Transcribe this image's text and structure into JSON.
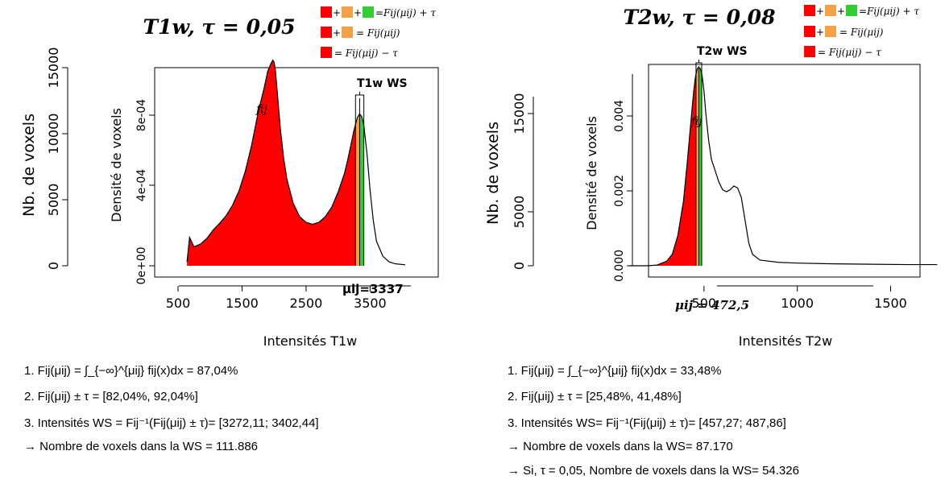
{
  "colors": {
    "red": "#ff0000",
    "orange": "#f4a044",
    "green": "#32cd32",
    "line": "#000000"
  },
  "legend": {
    "row1": "=Fij(μij) + τ",
    "row2": "= Fij(μij)",
    "row3": "= Fij(μij) −  τ"
  },
  "chart_data": [
    {
      "type": "area",
      "title": "T1w, τ = 0,05",
      "xlabel": "Intensités T1w",
      "ylabel_left": "Nb. de voxels",
      "ylabel_right": "Densité de voxels",
      "xticks": [
        "500",
        "1500",
        "2500",
        "3500"
      ],
      "yticks_count": [
        "0",
        "5000",
        "10000",
        "15000"
      ],
      "yticks_density": [
        "0e+00",
        "4e-04",
        "8e-04"
      ],
      "xlim": [
        500,
        4200
      ],
      "ylim_density": [
        0,
        0.00105
      ],
      "curve_label": "fij",
      "ws_label": "T1w WS",
      "mu_label": "μij=3337",
      "mu": 3337,
      "ws_interval": [
        3272.11,
        3402.44
      ],
      "x": [
        640,
        680,
        750,
        850,
        950,
        1050,
        1150,
        1250,
        1350,
        1450,
        1550,
        1650,
        1750,
        1850,
        1900,
        1950,
        1980,
        2000,
        2020,
        2050,
        2100,
        2150,
        2200,
        2300,
        2400,
        2500,
        2600,
        2700,
        2800,
        2900,
        3000,
        3100,
        3150,
        3200,
        3250,
        3300,
        3337,
        3370,
        3400,
        3450,
        3500,
        3550,
        3600,
        3700,
        3800,
        3900,
        4050
      ],
      "y": [
        2e-05,
        0.00015,
        0.0001,
        0.000115,
        0.000145,
        0.00019,
        0.000225,
        0.000265,
        0.00032,
        0.000395,
        0.0005,
        0.00064,
        0.00081,
        0.00095,
        0.00103,
        0.00107,
        0.00109,
        0.00108,
        0.00104,
        0.00092,
        0.00072,
        0.00057,
        0.00046,
        0.00033,
        0.00026,
        0.00023,
        0.00022,
        0.00023,
        0.00026,
        0.00031,
        0.00039,
        0.00049,
        0.00056,
        0.00064,
        0.00072,
        0.000785,
        0.000805,
        0.00079,
        0.00075,
        0.0006,
        0.0004,
        0.00024,
        0.00013,
        5e-05,
        2e-05,
        1e-05,
        5e-06
      ],
      "notes": [
        "1. Fij(μij) = ∫_{−∞}^{μij} fij(x)dx = 87,04%",
        "2. Fij(μij) ±  τ  = [82,04%, 92,04%]",
        "3. Intensités WS = Fij⁻¹(Fij(μij) ±  τ)= [3272,11; 3402,44]",
        "→ Nombre de voxels dans la WS = 111.886"
      ]
    },
    {
      "type": "area",
      "title": "T2w, τ = 0,08",
      "xlabel": "Intensités T2w",
      "ylabel_left": "Nb. de voxels",
      "ylabel_right": "Densité de voxels",
      "xticks": [
        "500",
        "1000",
        "1500"
      ],
      "yticks_count": [
        "0",
        "5000",
        "15000"
      ],
      "yticks_density": [
        "0.000",
        "0.002",
        "0.004"
      ],
      "xlim": [
        0,
        1800
      ],
      "ylim_density": [
        0,
        0.0053
      ],
      "curve_label": "fij",
      "ws_label": "T2w WS",
      "mu_label": "μij = 472,5",
      "mu": 472.5,
      "ws_interval": [
        457.27,
        487.86
      ],
      "x": [
        100,
        200,
        250,
        300,
        330,
        360,
        390,
        410,
        430,
        445,
        455,
        465,
        472.5,
        480,
        490,
        500,
        510,
        525,
        540,
        560,
        580,
        600,
        620,
        640,
        660,
        680,
        700,
        720,
        740,
        760,
        800,
        900,
        1000,
        1200,
        1400,
        1600,
        1750
      ],
      "y": [
        0.0,
        0.0,
        2e-05,
        0.00012,
        0.0003,
        0.0008,
        0.0017,
        0.0027,
        0.0038,
        0.0046,
        0.005,
        0.0052,
        0.00522,
        0.0052,
        0.005,
        0.0046,
        0.004,
        0.0033,
        0.0028,
        0.0025,
        0.0022,
        0.002,
        0.00195,
        0.002,
        0.0021,
        0.00205,
        0.0018,
        0.0012,
        0.0006,
        0.0003,
        0.00015,
        9e-05,
        7e-05,
        5e-05,
        4e-05,
        3e-05,
        3e-05
      ],
      "notes": [
        "1. Fij(μij) = ∫_{−∞}^{μij} fij(x)dx = 33,48%",
        "2. Fij(μij) ±  τ  = [25,48%, 41,48%]",
        "3. Intensités WS= Fij⁻¹(Fij(μij) ±  τ)= [457,27; 487,86]",
        "→  Nombre de voxels dans la WS= 87.170",
        "→  Si, τ = 0,05, Nombre de voxels dans la WS= 54.326"
      ]
    }
  ]
}
